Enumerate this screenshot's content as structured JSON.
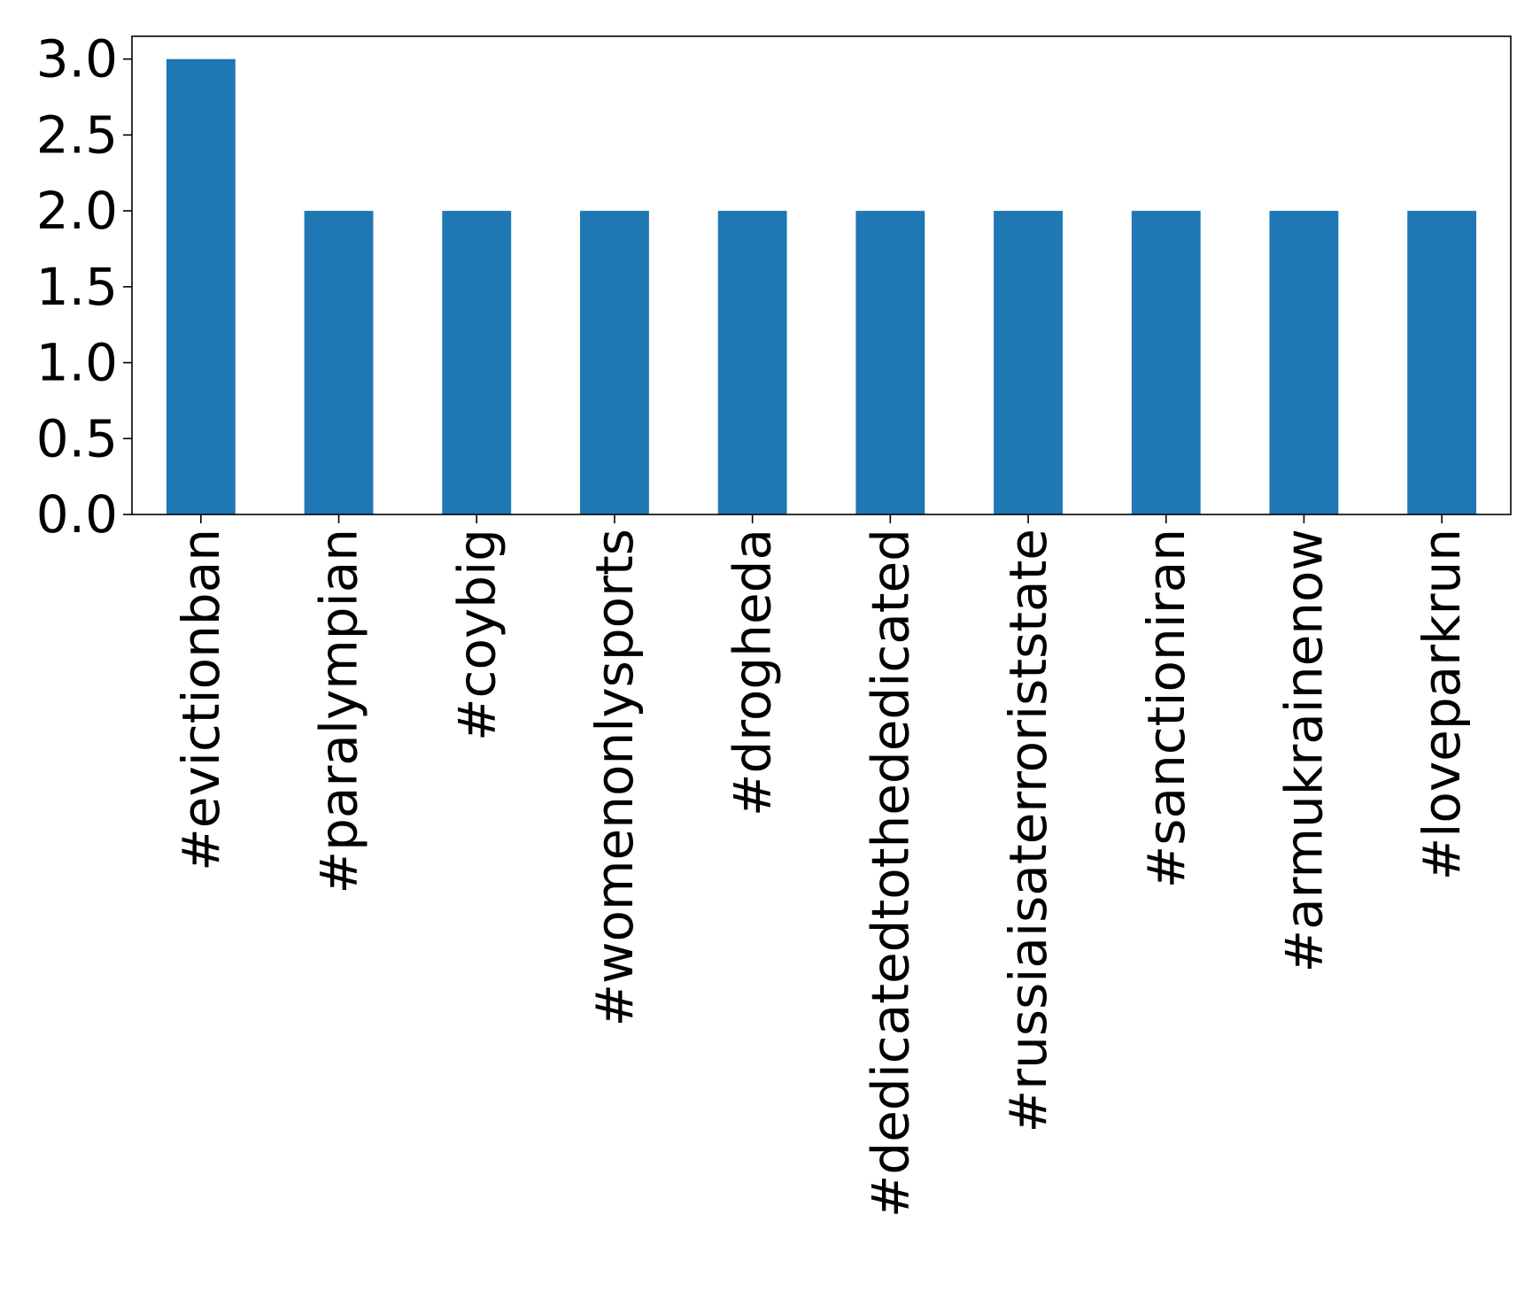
{
  "chart_data": {
    "type": "bar",
    "title": "",
    "xlabel": "",
    "ylabel": "",
    "categories": [
      "#evictionban",
      "#paralympian",
      "#coybig",
      "#womenonlysports",
      "#drogheda",
      "#dedicatedtothededicated",
      "#russiaisaterroriststate",
      "#sanctioniran",
      "#armukrainenow",
      "#loveparkrun"
    ],
    "values": [
      3,
      2,
      2,
      2,
      2,
      2,
      2,
      2,
      2,
      2
    ],
    "ylim": [
      0,
      3.15
    ],
    "yticks": [
      "0.0",
      "0.5",
      "1.0",
      "1.5",
      "2.0",
      "2.5",
      "3.0"
    ],
    "bar_color": "#1f77b4",
    "grid": false,
    "legend": "none"
  }
}
